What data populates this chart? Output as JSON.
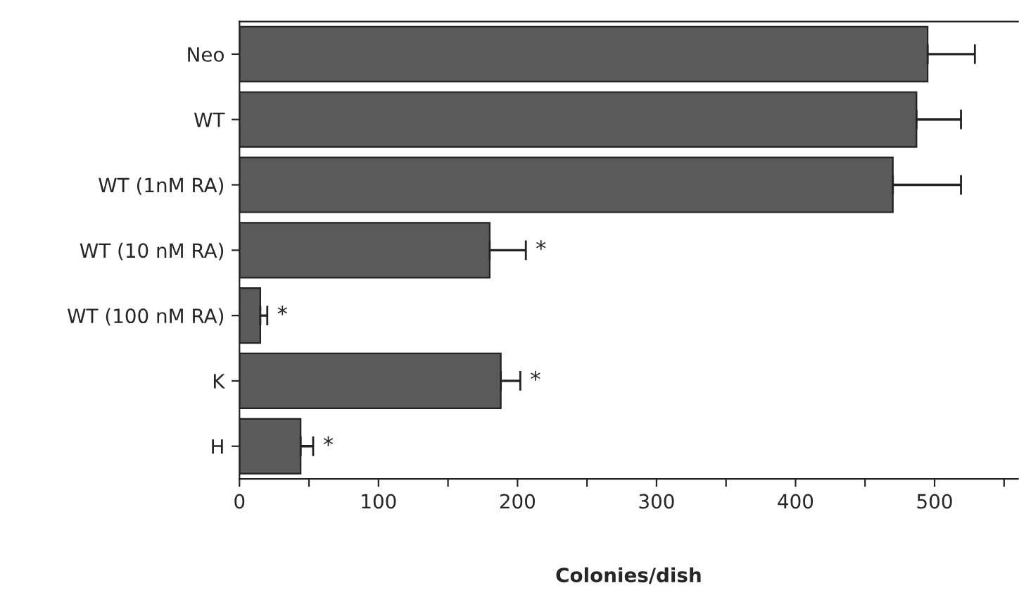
{
  "chart_data": {
    "type": "bar",
    "orientation": "horizontal",
    "xlabel": "Colonies/dish",
    "categories": [
      "Neo",
      "WT",
      "WT (1nM RA)",
      "WT (10 nM RA)",
      "WT (100 nM RA)",
      "K",
      "H"
    ],
    "values": [
      495,
      487,
      470,
      180,
      15,
      188,
      44
    ],
    "errors": [
      [
        495,
        529
      ],
      [
        487,
        519
      ],
      [
        470,
        519
      ],
      [
        180,
        206
      ],
      [
        15,
        20
      ],
      [
        188,
        202
      ],
      [
        44,
        53
      ]
    ],
    "color": "#5a5a5a",
    "xlim": [
      0,
      560
    ],
    "xticks": [
      0,
      {
        "value": 50,
        "label": null
      },
      100,
      {
        "value": 150,
        "label": null
      },
      200,
      {
        "value": 250,
        "label": null
      },
      300,
      {
        "value": 350,
        "label": null
      },
      400,
      {
        "value": 450,
        "label": null
      },
      500,
      {
        "value": 550,
        "label": null
      }
    ],
    "annotations": [
      {
        "text": "*",
        "x": 206,
        "y": "WT (10 nM RA)"
      },
      {
        "text": "*",
        "x": 20,
        "y": "WT (100 nM RA)"
      },
      {
        "text": "*",
        "x": 202,
        "y": "K"
      },
      {
        "text": "*",
        "x": 53,
        "y": "H"
      }
    ],
    "grid": false,
    "legend": false
  }
}
